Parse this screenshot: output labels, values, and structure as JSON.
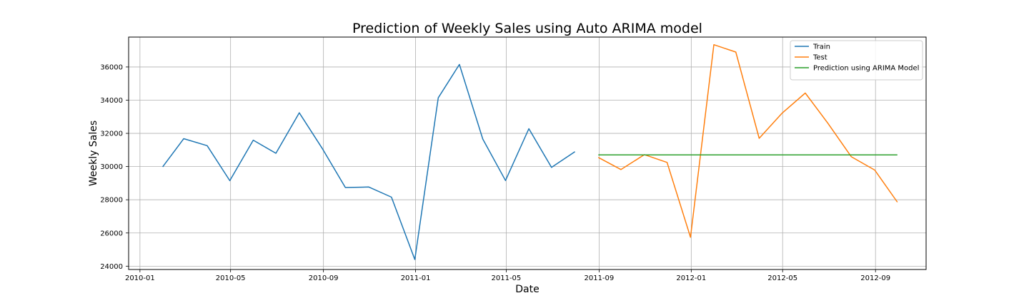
{
  "chart_data": {
    "type": "line",
    "title": "Prediction of Weekly Sales using Auto ARIMA model",
    "xlabel": "Date",
    "ylabel": "Weekly Sales",
    "xlim": [
      "2009-12-17",
      "2012-11-07"
    ],
    "ylim": [
      23800,
      37800
    ],
    "grid": true,
    "legend_position": "top-right",
    "x_ticks": [
      {
        "date": "2010-01-01",
        "label": "2010-01"
      },
      {
        "date": "2010-05-01",
        "label": "2010-05"
      },
      {
        "date": "2010-09-01",
        "label": "2010-09"
      },
      {
        "date": "2011-01-01",
        "label": "2011-01"
      },
      {
        "date": "2011-05-01",
        "label": "2011-05"
      },
      {
        "date": "2011-09-01",
        "label": "2011-09"
      },
      {
        "date": "2012-01-01",
        "label": "2012-01"
      },
      {
        "date": "2012-05-01",
        "label": "2012-05"
      },
      {
        "date": "2012-09-01",
        "label": "2012-09"
      }
    ],
    "y_ticks": [
      24000,
      26000,
      28000,
      30000,
      32000,
      34000,
      36000
    ],
    "series": [
      {
        "name": "Train",
        "color": "#1f77b4",
        "points": [
          {
            "x": "2010-01-31",
            "y": 29980
          },
          {
            "x": "2010-02-28",
            "y": 31680
          },
          {
            "x": "2010-03-31",
            "y": 31260
          },
          {
            "x": "2010-04-30",
            "y": 29150
          },
          {
            "x": "2010-05-31",
            "y": 31590
          },
          {
            "x": "2010-06-30",
            "y": 30800
          },
          {
            "x": "2010-07-31",
            "y": 33240
          },
          {
            "x": "2010-08-31",
            "y": 31050
          },
          {
            "x": "2010-09-30",
            "y": 28740
          },
          {
            "x": "2010-10-31",
            "y": 28770
          },
          {
            "x": "2010-11-30",
            "y": 28160
          },
          {
            "x": "2010-12-31",
            "y": 24400
          },
          {
            "x": "2011-01-31",
            "y": 34140
          },
          {
            "x": "2011-02-28",
            "y": 36150
          },
          {
            "x": "2011-03-31",
            "y": 31660
          },
          {
            "x": "2011-04-30",
            "y": 29160
          },
          {
            "x": "2011-05-31",
            "y": 32280
          },
          {
            "x": "2011-06-30",
            "y": 29950
          },
          {
            "x": "2011-07-31",
            "y": 30900
          }
        ]
      },
      {
        "name": "Test",
        "color": "#ff7f0e",
        "points": [
          {
            "x": "2011-08-31",
            "y": 30550
          },
          {
            "x": "2011-09-30",
            "y": 29820
          },
          {
            "x": "2011-10-31",
            "y": 30720
          },
          {
            "x": "2011-11-30",
            "y": 30250
          },
          {
            "x": "2011-12-31",
            "y": 25740
          },
          {
            "x": "2012-01-31",
            "y": 37340
          },
          {
            "x": "2012-02-29",
            "y": 36900
          },
          {
            "x": "2012-03-31",
            "y": 31700
          },
          {
            "x": "2012-04-30",
            "y": 33200
          },
          {
            "x": "2012-05-31",
            "y": 34430
          },
          {
            "x": "2012-06-30",
            "y": 32610
          },
          {
            "x": "2012-07-31",
            "y": 30590
          },
          {
            "x": "2012-08-31",
            "y": 29790
          },
          {
            "x": "2012-09-30",
            "y": 27860
          }
        ]
      },
      {
        "name": "Prediction using ARIMA Model",
        "color": "#2ca02c",
        "points": [
          {
            "x": "2011-08-31",
            "y": 30700
          },
          {
            "x": "2011-09-30",
            "y": 30700
          },
          {
            "x": "2011-10-31",
            "y": 30700
          },
          {
            "x": "2011-11-30",
            "y": 30700
          },
          {
            "x": "2011-12-31",
            "y": 30700
          },
          {
            "x": "2012-01-31",
            "y": 30700
          },
          {
            "x": "2012-02-29",
            "y": 30700
          },
          {
            "x": "2012-03-31",
            "y": 30700
          },
          {
            "x": "2012-04-30",
            "y": 30700
          },
          {
            "x": "2012-05-31",
            "y": 30700
          },
          {
            "x": "2012-06-30",
            "y": 30700
          },
          {
            "x": "2012-07-31",
            "y": 30700
          },
          {
            "x": "2012-08-31",
            "y": 30700
          },
          {
            "x": "2012-09-30",
            "y": 30700
          }
        ]
      }
    ]
  }
}
